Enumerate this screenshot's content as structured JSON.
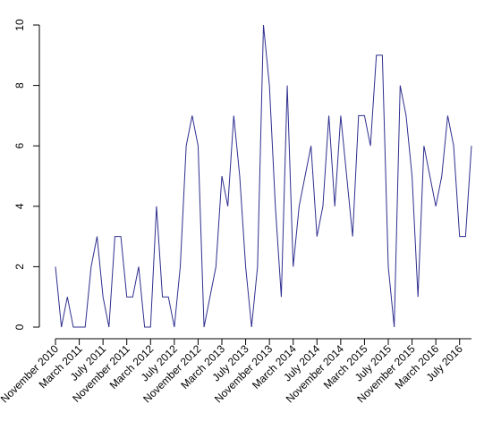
{
  "chart_data": {
    "type": "line",
    "title": "",
    "xlabel": "",
    "ylabel": "",
    "ylim": [
      0,
      10
    ],
    "grid": false,
    "line_color": "#2e2e8f",
    "y_ticks": [
      0,
      2,
      4,
      6,
      8,
      10
    ],
    "x_tick_labels": [
      {
        "label": "November 2010",
        "index": 0
      },
      {
        "label": "March 2011",
        "index": 4
      },
      {
        "label": "July 2011",
        "index": 8
      },
      {
        "label": "November 2011",
        "index": 12
      },
      {
        "label": "March 2012",
        "index": 16
      },
      {
        "label": "July 2012",
        "index": 20
      },
      {
        "label": "November 2012",
        "index": 24
      },
      {
        "label": "March 2013",
        "index": 28
      },
      {
        "label": "July 2013",
        "index": 32
      },
      {
        "label": "November 2013",
        "index": 36
      },
      {
        "label": "March 2014",
        "index": 40
      },
      {
        "label": "July 2014",
        "index": 44
      },
      {
        "label": "November 2014",
        "index": 48
      },
      {
        "label": "March 2015",
        "index": 52
      },
      {
        "label": "July 2015",
        "index": 56
      },
      {
        "label": "November 2015",
        "index": 60
      },
      {
        "label": "March 2016",
        "index": 64
      },
      {
        "label": "July 2016",
        "index": 68
      }
    ],
    "x": [
      "2010-11",
      "2010-12",
      "2011-01",
      "2011-02",
      "2011-03",
      "2011-04",
      "2011-05",
      "2011-06",
      "2011-07",
      "2011-08",
      "2011-09",
      "2011-10",
      "2011-11",
      "2011-12",
      "2012-01",
      "2012-02",
      "2012-03",
      "2012-04",
      "2012-05",
      "2012-06",
      "2012-07",
      "2012-08",
      "2012-09",
      "2012-10",
      "2012-11",
      "2012-12",
      "2013-01",
      "2013-02",
      "2013-03",
      "2013-04",
      "2013-05",
      "2013-06",
      "2013-07",
      "2013-08",
      "2013-09",
      "2013-10",
      "2013-11",
      "2013-12",
      "2014-01",
      "2014-02",
      "2014-03",
      "2014-04",
      "2014-05",
      "2014-06",
      "2014-07",
      "2014-08",
      "2014-09",
      "2014-10",
      "2014-11",
      "2014-12",
      "2015-01",
      "2015-02",
      "2015-03",
      "2015-04",
      "2015-05",
      "2015-06",
      "2015-07",
      "2015-08",
      "2015-09",
      "2015-10",
      "2015-11",
      "2015-12",
      "2016-01",
      "2016-02",
      "2016-03",
      "2016-04",
      "2016-05",
      "2016-06",
      "2016-07",
      "2016-08",
      "2016-09"
    ],
    "values": [
      2,
      0,
      1,
      0,
      0,
      0,
      2,
      3,
      1,
      0,
      3,
      3,
      1,
      1,
      2,
      0,
      0,
      4,
      1,
      1,
      0,
      2,
      6,
      7,
      6,
      0,
      1,
      2,
      5,
      4,
      7,
      5,
      2,
      0,
      2,
      10,
      8,
      4,
      1,
      8,
      2,
      4,
      5,
      6,
      3,
      4,
      7,
      4,
      7,
      5,
      3,
      7,
      7,
      6,
      9,
      9,
      2,
      0,
      8,
      7,
      5,
      1,
      6,
      5,
      4,
      5,
      7,
      6,
      3,
      3,
      6
    ]
  }
}
